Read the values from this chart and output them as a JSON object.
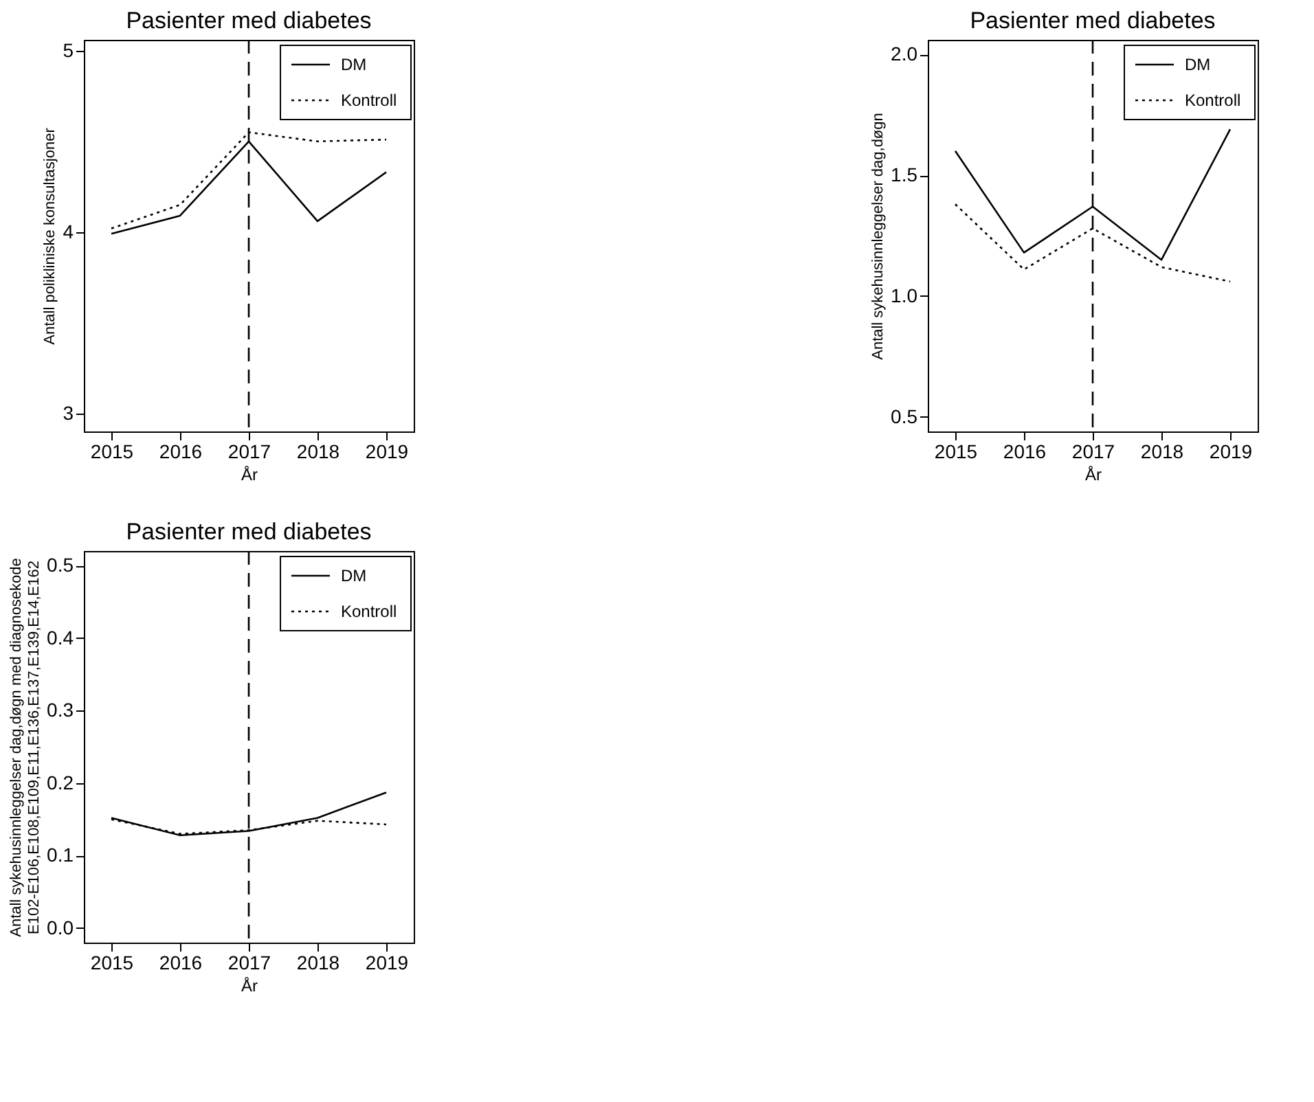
{
  "chart_data": [
    {
      "type": "line",
      "title": "Pasienter med diabetes",
      "xlabel": "År",
      "ylabel": "Antall polikliniske konsultasjoner",
      "x": [
        2015,
        2016,
        2017,
        2018,
        2019
      ],
      "xlim": [
        2014.6,
        2019.4
      ],
      "xticks": [
        2015,
        2016,
        2017,
        2018,
        2019
      ],
      "ylim": [
        2.9,
        5.06
      ],
      "yticks": [
        3,
        4,
        5
      ],
      "grid": false,
      "legend": "top right",
      "series": [
        {
          "name": "DM",
          "color": "#000000",
          "line_style": "solid",
          "values": [
            3.99,
            4.09,
            4.5,
            4.06,
            4.33
          ]
        },
        {
          "name": "Kontroll",
          "color": "#000000",
          "line_style": "dotted",
          "values": [
            4.02,
            4.15,
            4.55,
            4.5,
            4.51
          ]
        }
      ],
      "ref_lines": [
        {
          "axis": "x",
          "value": 2017,
          "color": "#000000",
          "line_style": "dashed"
        }
      ]
    },
    {
      "type": "line",
      "title": "Pasienter med diabetes",
      "xlabel": "År",
      "ylabel": "Antall sykehusinnleggelser dag,døgn",
      "x": [
        2015,
        2016,
        2017,
        2018,
        2019
      ],
      "xlim": [
        2014.6,
        2019.4
      ],
      "xticks": [
        2015,
        2016,
        2017,
        2018,
        2019
      ],
      "ylim": [
        0.44,
        2.06
      ],
      "yticks": [
        {
          "value": 0.5,
          "label": "0.5"
        },
        {
          "value": 1,
          "label": "1.0"
        },
        {
          "value": 1.5,
          "label": "1.5"
        },
        {
          "value": 2,
          "label": "2.0"
        }
      ],
      "grid": false,
      "legend": "top right",
      "series": [
        {
          "name": "DM",
          "color": "#000000",
          "line_style": "solid",
          "values": [
            1.6,
            1.18,
            1.37,
            1.15,
            1.69
          ]
        },
        {
          "name": "Kontroll",
          "color": "#000000",
          "line_style": "dotted",
          "values": [
            1.38,
            1.11,
            1.28,
            1.12,
            1.06
          ]
        }
      ],
      "ref_lines": [
        {
          "axis": "x",
          "value": 2017,
          "color": "#000000",
          "line_style": "dashed"
        }
      ]
    },
    {
      "type": "line",
      "title": "Pasienter med diabetes",
      "xlabel": "År",
      "ylabel": "Antall sykehusinnleggelser dag,døgn med diagnosekode\nE102-E106,E108,E109,E11,E136,E137,E139,E14,E162",
      "x": [
        2015,
        2016,
        2017,
        2018,
        2019
      ],
      "xlim": [
        2014.6,
        2019.4
      ],
      "xticks": [
        2015,
        2016,
        2017,
        2018,
        2019
      ],
      "ylim": [
        -0.02,
        0.52
      ],
      "yticks": [
        {
          "value": 0,
          "label": "0.0"
        },
        {
          "value": 0.1,
          "label": "0.1"
        },
        {
          "value": 0.2,
          "label": "0.2"
        },
        {
          "value": 0.3,
          "label": "0.3"
        },
        {
          "value": 0.4,
          "label": "0.4"
        },
        {
          "value": 0.5,
          "label": "0.5"
        }
      ],
      "grid": false,
      "legend": "top right",
      "series": [
        {
          "name": "DM",
          "color": "#000000",
          "line_style": "solid",
          "values": [
            0.152,
            0.128,
            0.134,
            0.152,
            0.187
          ]
        },
        {
          "name": "Kontroll",
          "color": "#000000",
          "line_style": "dotted",
          "values": [
            0.15,
            0.13,
            0.135,
            0.148,
            0.143
          ]
        }
      ],
      "ref_lines": [
        {
          "axis": "x",
          "value": 2017,
          "color": "#000000",
          "line_style": "dashed"
        }
      ]
    }
  ]
}
